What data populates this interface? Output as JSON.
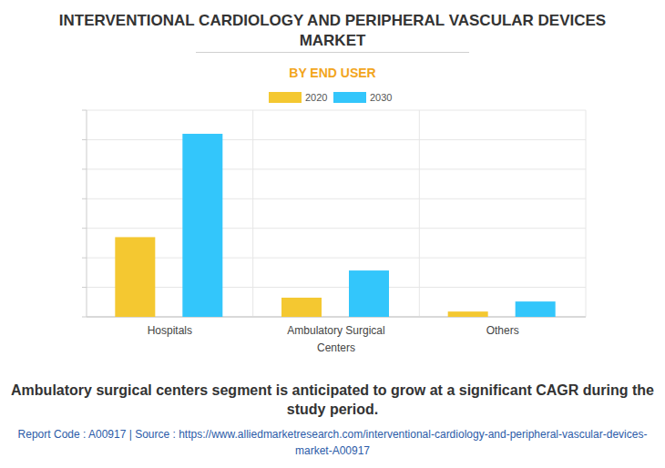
{
  "chart_data": {
    "type": "bar",
    "title": "INTERVENTIONAL CARDIOLOGY AND PERIPHERAL VASCULAR DEVICES MARKET",
    "subtitle": "BY END USER",
    "categories": [
      "Hospitals",
      "Ambulatory Surgical Centers",
      "Others"
    ],
    "series": [
      {
        "name": "2020",
        "color": "#f4c831",
        "values": [
          2.7,
          0.65,
          0.18
        ]
      },
      {
        "name": "2030",
        "color": "#33c6fb",
        "values": [
          6.2,
          1.57,
          0.52
        ]
      }
    ],
    "ylim": [
      0,
      7
    ],
    "yticks": [
      0,
      1,
      2,
      3,
      4,
      5,
      6,
      7
    ],
    "grid": true,
    "tick_labels": "x",
    "legend": "top"
  },
  "footer": {
    "caption": "Ambulatory surgical centers segment is anticipated to grow at a significant CAGR during the study period.",
    "source": "Report Code : A00917  |  Source : https://www.alliedmarketresearch.com/interventional-cardiology-and-peripheral-vascular-devices-market-A00917"
  }
}
